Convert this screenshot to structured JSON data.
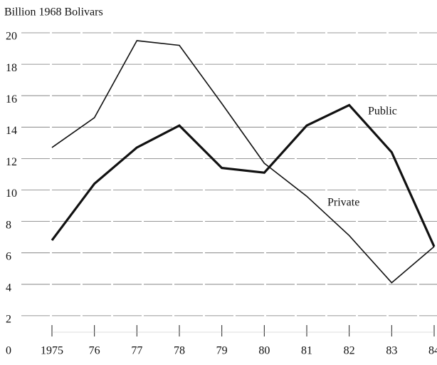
{
  "chart_data": {
    "type": "line",
    "ylabel": "Billion 1968 Bolivars",
    "categories": [
      "1975",
      "76",
      "77",
      "78",
      "79",
      "80",
      "81",
      "82",
      "83",
      "84"
    ],
    "series": [
      {
        "name": "Private",
        "color": "#111111",
        "width": 1.6,
        "values": [
          12.7,
          14.6,
          19.5,
          19.2,
          15.5,
          11.7,
          9.6,
          7.1,
          4.1,
          6.4
        ]
      },
      {
        "name": "Public",
        "color": "#111111",
        "width": 3.2,
        "values": [
          6.8,
          10.4,
          12.7,
          14.1,
          11.4,
          11.1,
          14.1,
          15.4,
          12.4,
          6.4
        ]
      }
    ],
    "ylim": [
      0,
      20
    ],
    "yticks": [
      0,
      2,
      4,
      6,
      8,
      10,
      12,
      14,
      16,
      18,
      20
    ],
    "grid": true
  }
}
